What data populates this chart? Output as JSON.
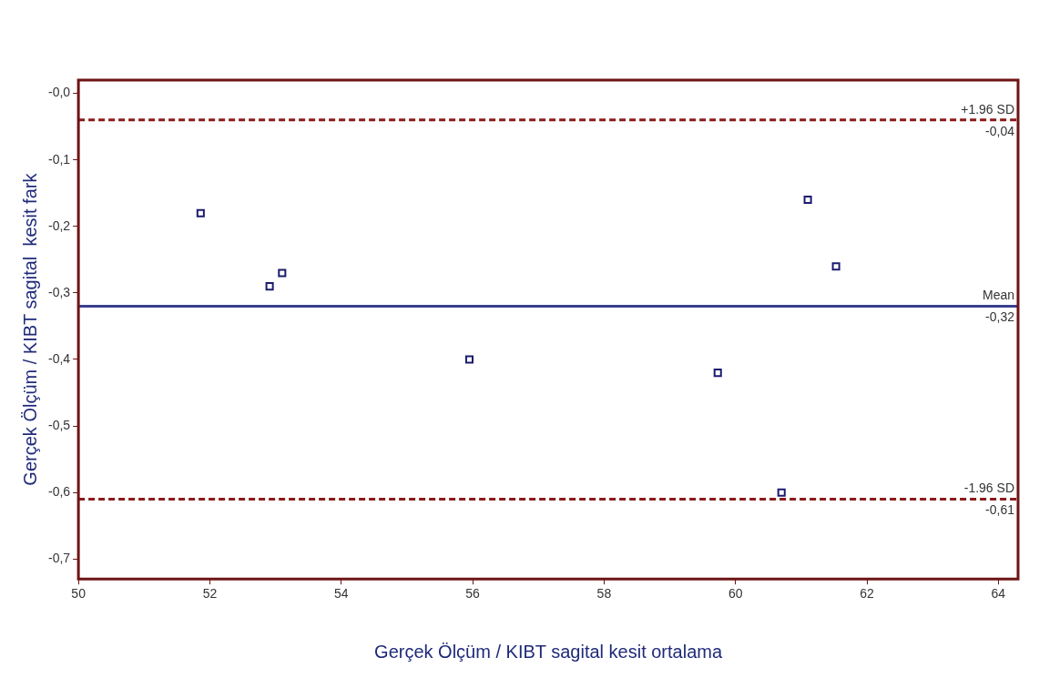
{
  "chart_data": {
    "type": "scatter",
    "xlabel": "Gerçek Ölçüm / KIBT sagital kesit ortalama",
    "ylabel": "Gerçek Ölçüm / KIBT sagital  kesit fark",
    "x": [
      51.86,
      52.91,
      53.1,
      55.95,
      59.73,
      60.7,
      61.1,
      61.53
    ],
    "series": [
      {
        "color": "#1c1c6e",
        "values": [
          -0.18,
          -0.29,
          -0.27,
          -0.4,
          -0.42,
          -0.6,
          -0.16,
          -0.26
        ]
      }
    ],
    "marker": "square",
    "legend": false,
    "grid": false,
    "xlim": [
      50,
      64.3
    ],
    "xticks": [
      50,
      52,
      54,
      56,
      58,
      60,
      62,
      64
    ],
    "ylim": [
      -0.73,
      0.02
    ],
    "yticks": [
      {
        "value": 0,
        "label": "-0,0"
      },
      {
        "value": -0.1,
        "label": "-0,1"
      },
      {
        "value": -0.2,
        "label": "-0,2"
      },
      {
        "value": -0.3,
        "label": "-0,3"
      },
      {
        "value": -0.4,
        "label": "-0,4"
      },
      {
        "value": -0.5,
        "label": "-0,5"
      },
      {
        "value": -0.6,
        "label": "-0,6"
      },
      {
        "value": -0.7,
        "label": "-0,7"
      }
    ],
    "ref_lines": [
      {
        "axis": "y",
        "value": -0.04,
        "label": "+1.96 SD",
        "color": "#8b1a1a",
        "line_style": "dashed"
      },
      {
        "axis": "y",
        "value": -0.32,
        "label": "Mean",
        "color": "#3a3f8f",
        "line_style": "solid"
      },
      {
        "axis": "y",
        "value": -0.61,
        "label": "-1.96 SD",
        "color": "#8b1a1a",
        "line_style": "dashed"
      }
    ],
    "annotations": [
      {
        "text": "-0,04",
        "y": -0.04
      },
      {
        "text": "-0,32",
        "y": -0.32
      },
      {
        "text": "-0,61",
        "y": -0.61
      }
    ]
  }
}
